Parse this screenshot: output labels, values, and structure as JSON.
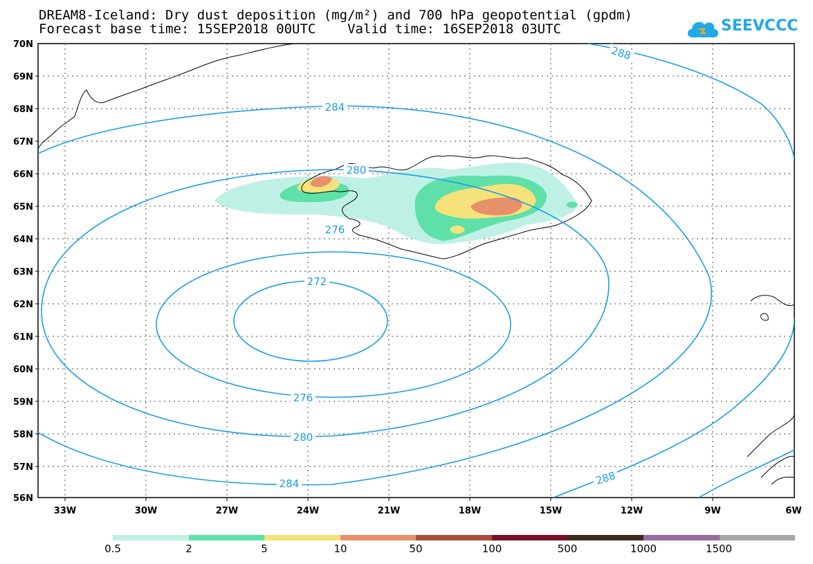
{
  "title": {
    "line1": "DREAM8-Iceland: Dry dust deposition (mg/m²) and 700 hPa geopotential (gpdm)",
    "line2": "Forecast base time: 15SEP2018 00UTC    Valid time: 16SEP2018 03UTC"
  },
  "logo": {
    "text": "SEEVCCC",
    "color": "#1fa9e6"
  },
  "map": {
    "region": "Iceland",
    "lat_range": [
      56,
      70
    ],
    "lon_range": [
      -34,
      -6
    ],
    "lat_ticks": [
      "70N",
      "69N",
      "68N",
      "67N",
      "66N",
      "65N",
      "64N",
      "63N",
      "62N",
      "61N",
      "60N",
      "59N",
      "58N",
      "57N",
      "56N"
    ],
    "lon_ticks": [
      "33W",
      "30W",
      "27W",
      "24W",
      "21W",
      "18W",
      "15W",
      "12W",
      "9W",
      "6W"
    ],
    "contour_color": "#1a9ee6",
    "contour_labels": [
      "288",
      "284",
      "280",
      "276",
      "272",
      "276",
      "280",
      "284",
      "288"
    ]
  },
  "legend": {
    "colors": [
      "#bff0e6",
      "#5fe0a8",
      "#f5e27a",
      "#e8906a",
      "#a5503a",
      "#7a0f2a",
      "#3d2a1a",
      "#9a6ba0",
      "#a6a6a6"
    ],
    "labels": [
      "0.5",
      "2",
      "5",
      "10",
      "50",
      "100",
      "500",
      "1000",
      "1500"
    ]
  }
}
